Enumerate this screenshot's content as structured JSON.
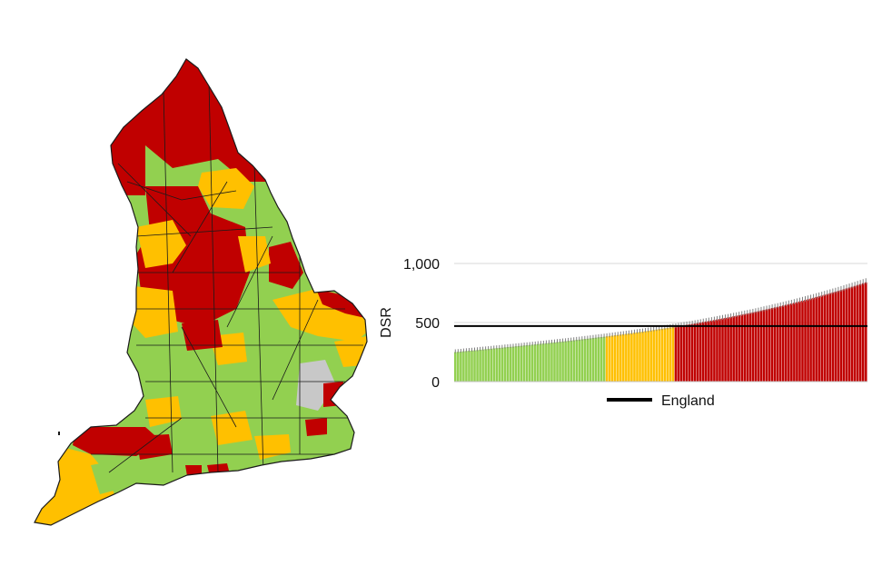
{
  "colors": {
    "green": "#92d050",
    "amber": "#ffc000",
    "red": "#c00000",
    "grey": "#c8c8c8",
    "purple": "#b085c0",
    "border": "#1a1a1a",
    "errorbar": "#808080",
    "reference": "#000000"
  },
  "chart_data": {
    "type": "bar",
    "ylabel": "DSR",
    "ylim": [
      0,
      1000
    ],
    "yticks": [
      0,
      500,
      1000
    ],
    "ytick_labels": [
      "0",
      "500",
      "1,000"
    ],
    "gridlines": true,
    "sorted": "ascending",
    "reference_line": {
      "name": "England",
      "value": 470
    },
    "legend": {
      "label": "England",
      "placement": "below"
    },
    "bar_count": 150,
    "value_range": [
      250,
      840
    ],
    "category_breaks": [
      {
        "category": "green",
        "from_rank": 1,
        "to_rank": 55
      },
      {
        "category": "amber",
        "from_rank": 56,
        "to_rank": 80
      },
      {
        "category": "red",
        "from_rank": 81,
        "to_rank": 150
      }
    ]
  }
}
